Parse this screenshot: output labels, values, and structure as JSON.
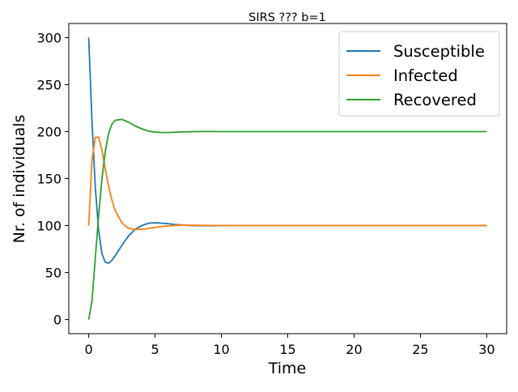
{
  "chart_data": {
    "type": "line",
    "title": "SIRS ??? b=1",
    "xlabel": "Time",
    "ylabel": "Nr. of individuals",
    "xlim": [
      -1.5,
      31.5
    ],
    "ylim": [
      -15,
      315
    ],
    "xticks": [
      0,
      5,
      10,
      15,
      20,
      25,
      30
    ],
    "yticks": [
      0,
      50,
      100,
      150,
      200,
      250,
      300
    ],
    "grid": false,
    "legend_position": "top-right",
    "x": [
      0,
      0.25,
      0.5,
      0.75,
      1,
      1.25,
      1.5,
      1.75,
      2,
      2.5,
      3,
      3.5,
      4,
      4.5,
      5,
      5.5,
      6,
      6.5,
      7,
      7.5,
      8,
      9,
      10,
      11,
      12,
      13,
      14,
      15,
      16,
      17,
      18,
      19,
      20,
      21,
      22,
      23,
      24,
      25,
      26,
      27,
      28,
      29,
      30
    ],
    "series": [
      {
        "name": "Susceptible",
        "color": "#1f77b4",
        "values": [
          300,
          210,
          140,
          95,
          70,
          61,
          60,
          63,
          68,
          79,
          89,
          96,
          100,
          102.5,
          103,
          102.5,
          102,
          101.2,
          100.6,
          100.2,
          99.9,
          99.8,
          100,
          100,
          100,
          100,
          100,
          100,
          100,
          100,
          100,
          100,
          100,
          100,
          100,
          100,
          100,
          100,
          100,
          100,
          100,
          100,
          100
        ]
      },
      {
        "name": "Infected",
        "color": "#ff7f0e",
        "values": [
          100,
          170,
          194,
          194,
          180,
          160,
          142,
          127,
          116,
          103,
          97,
          96,
          96,
          97,
          98,
          99,
          99.7,
          100.2,
          100.4,
          100.4,
          100.3,
          100.1,
          100,
          100,
          100,
          100,
          100,
          100,
          100,
          100,
          100,
          100,
          100,
          100,
          100,
          100,
          100,
          100,
          100,
          100,
          100,
          100,
          100
        ]
      },
      {
        "name": "Recovered",
        "color": "#2ca02c",
        "values": [
          0,
          20,
          66,
          111,
          150,
          179,
          198,
          208,
          212,
          213,
          210,
          206,
          203,
          200.5,
          199.5,
          199,
          199,
          199.3,
          199.6,
          199.8,
          200,
          200.1,
          200,
          200,
          200,
          200,
          200,
          200,
          200,
          200,
          200,
          200,
          200,
          200,
          200,
          200,
          200,
          200,
          200,
          200,
          200,
          200,
          200
        ]
      }
    ]
  }
}
